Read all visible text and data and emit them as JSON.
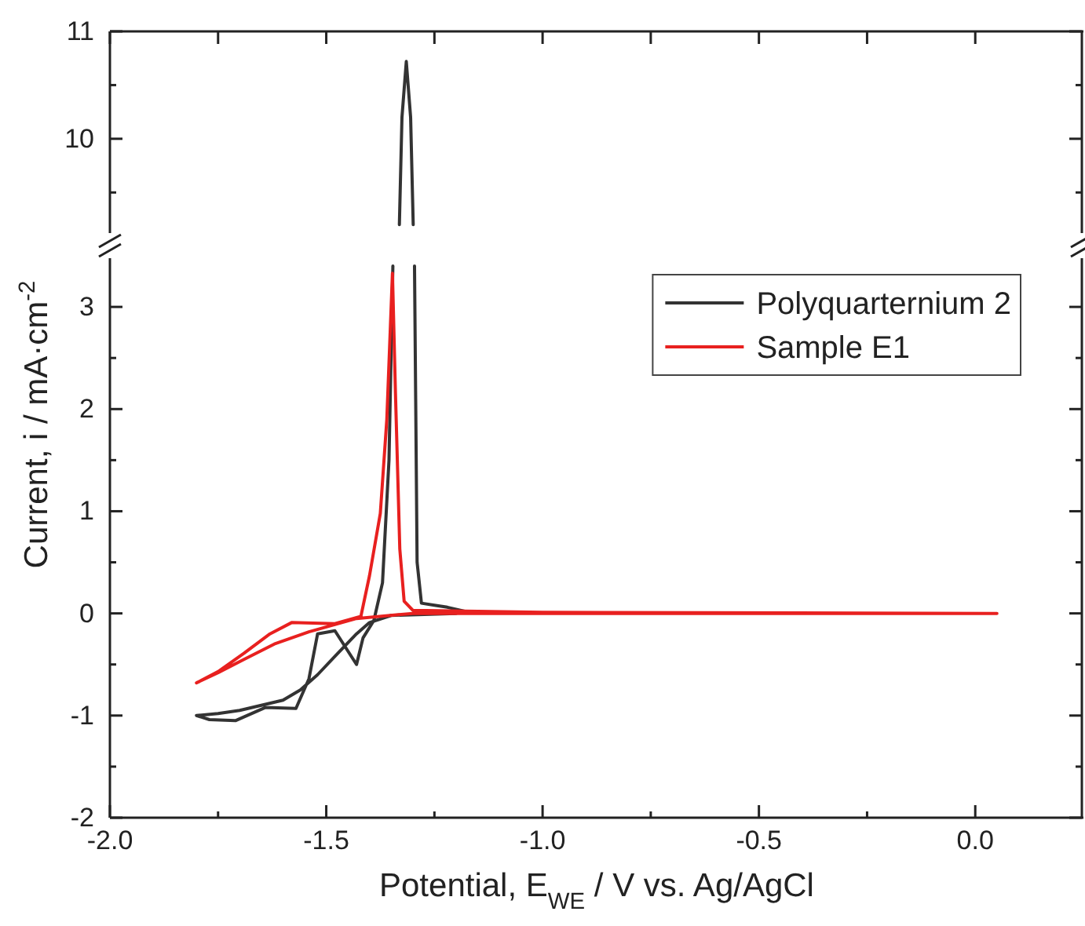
{
  "chart_data": [
    {
      "type": "line",
      "xlim": [
        -2,
        0.25
      ],
      "ylim": [
        9.1,
        11
      ],
      "xticks": [
        -2,
        -1.75,
        -1.5,
        -1.25,
        -1,
        -0.75,
        -0.5,
        -0.25,
        0
      ],
      "yticks": [
        {
          "value": 9.5,
          "label": null
        },
        10,
        {
          "value": 10.5,
          "label": null
        },
        11
      ],
      "tick_labels": "y",
      "series": [
        {
          "color": "#333333",
          "x": [
            -1.331,
            -1.325,
            -1.315,
            -1.305,
            -1.299
          ],
          "values": [
            9.2,
            10.2,
            10.72,
            10.2,
            9.2
          ]
        }
      ]
    },
    {
      "type": "line",
      "xlim": [
        -2,
        0.25
      ],
      "ylim": [
        -2,
        3.5
      ],
      "xlabel": "Potential, E$_{WE}$ / V vs. Ag/AgCl",
      "ylabel": "Current, i / mA·cm$^{-2}$",
      "legend": "top right",
      "xticks": [
        {
          "value": -2,
          "label": "-2.0"
        },
        {
          "value": -1.75,
          "label": null
        },
        {
          "value": -1.5,
          "label": "-1.5"
        },
        {
          "value": -1.25,
          "label": null
        },
        {
          "value": -1,
          "label": "-1.0"
        },
        {
          "value": -0.75,
          "label": null
        },
        {
          "value": -0.5,
          "label": "-0.5"
        },
        {
          "value": -0.25,
          "label": null
        },
        {
          "value": 0,
          "label": "0.0"
        }
      ],
      "yticks": [
        -2,
        {
          "value": -1.5,
          "label": null
        },
        -1,
        {
          "value": -0.5,
          "label": null
        },
        0,
        {
          "value": 0.5,
          "label": null
        },
        1,
        {
          "value": 1.5,
          "label": null
        },
        2,
        {
          "value": 2.5,
          "label": null
        },
        3
      ],
      "series": [
        {
          "name": "Polyquarternium 2",
          "color": "#333333",
          "x": [
            -1.2,
            -1.35,
            -1.4,
            -1.43,
            -1.48,
            -1.52,
            -1.56,
            -1.6,
            -1.65,
            -1.7,
            -1.75,
            -1.8,
            -1.77,
            -1.71,
            -1.64,
            -1.57,
            -1.54,
            -1.52,
            -1.48,
            -1.43,
            -1.415,
            -1.39,
            -1.37,
            -1.355,
            -1.346,
            -1.315,
            -1.296,
            -1.29,
            -1.28,
            -1.25,
            -1.22,
            -1.18
          ],
          "values": [
            0,
            -0.02,
            -0.09,
            -0.2,
            -0.42,
            -0.6,
            -0.75,
            -0.85,
            -0.9,
            -0.95,
            -0.98,
            -1,
            -1.04,
            -1.05,
            -0.92,
            -0.93,
            -0.64,
            -0.2,
            -0.17,
            -0.5,
            -0.24,
            -0.07,
            0.3,
            1.5,
            3.4,
            null,
            3.4,
            0.5,
            0.1,
            0.08,
            0.06,
            0.02
          ]
        },
        {
          "name": "Sample E1",
          "color": "#e8201f",
          "x": [
            0.05,
            -0.5,
            -1,
            -1.3,
            -1.43,
            -1.54,
            -1.62,
            -1.69,
            -1.75,
            -1.8,
            -1.75,
            -1.69,
            -1.63,
            -1.58,
            -1.48,
            -1.42,
            -1.4,
            -1.375,
            -1.36,
            -1.347,
            -1.34,
            -1.33,
            -1.32,
            -1.3,
            -1,
            0.04
          ],
          "values": [
            0,
            0,
            0,
            0,
            -0.05,
            -0.18,
            -0.3,
            -0.45,
            -0.58,
            -0.68,
            -0.57,
            -0.39,
            -0.2,
            -0.09,
            -0.1,
            -0.03,
            0.37,
            0.98,
            1.9,
            3.33,
            2.15,
            0.63,
            0.12,
            0.03,
            0.01,
            0
          ]
        }
      ]
    }
  ]
}
